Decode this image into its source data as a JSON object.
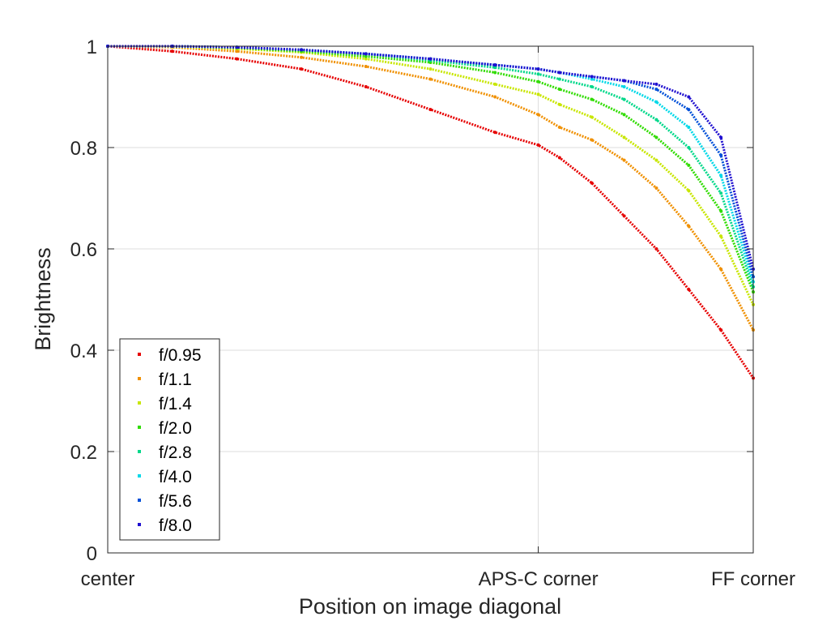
{
  "chart_data": {
    "type": "scatter",
    "title": "",
    "xlabel": "Position on image diagonal",
    "ylabel": "Brightness",
    "xlim": [
      0,
      1
    ],
    "ylim": [
      0,
      1
    ],
    "grid": true,
    "legend_position": "bottom-left",
    "x_ticks": [
      {
        "value": 0,
        "label": "center"
      },
      {
        "value": 0.667,
        "label": "APS-C corner"
      },
      {
        "value": 1,
        "label": "FF corner"
      }
    ],
    "y_ticks": [
      {
        "value": 0,
        "label": "0"
      },
      {
        "value": 0.2,
        "label": "0.2"
      },
      {
        "value": 0.4,
        "label": "0.4"
      },
      {
        "value": 0.6,
        "label": "0.6"
      },
      {
        "value": 0.8,
        "label": "0.8"
      },
      {
        "value": 1,
        "label": "1"
      }
    ],
    "x": [
      0,
      0.1,
      0.2,
      0.3,
      0.4,
      0.5,
      0.6,
      0.667,
      0.7,
      0.75,
      0.8,
      0.85,
      0.9,
      0.95,
      1.0
    ],
    "series": [
      {
        "name": "f/0.95",
        "color": "#e60000",
        "values": [
          1.0,
          0.99,
          0.975,
          0.955,
          0.92,
          0.875,
          0.83,
          0.805,
          0.78,
          0.73,
          0.665,
          0.6,
          0.52,
          0.44,
          0.345
        ]
      },
      {
        "name": "f/1.1",
        "color": "#f09000",
        "values": [
          1.0,
          0.998,
          0.99,
          0.978,
          0.96,
          0.935,
          0.9,
          0.865,
          0.84,
          0.815,
          0.775,
          0.72,
          0.645,
          0.56,
          0.44
        ]
      },
      {
        "name": "f/1.4",
        "color": "#c8e600",
        "values": [
          1.0,
          0.999,
          0.995,
          0.988,
          0.975,
          0.955,
          0.925,
          0.905,
          0.885,
          0.86,
          0.82,
          0.775,
          0.715,
          0.625,
          0.49
        ]
      },
      {
        "name": "f/2.0",
        "color": "#30dc00",
        "values": [
          1.0,
          1.0,
          0.997,
          0.99,
          0.98,
          0.968,
          0.948,
          0.93,
          0.915,
          0.895,
          0.865,
          0.82,
          0.765,
          0.675,
          0.515
        ]
      },
      {
        "name": "f/2.8",
        "color": "#00d88a",
        "values": [
          1.0,
          1.0,
          0.998,
          0.993,
          0.985,
          0.972,
          0.958,
          0.945,
          0.935,
          0.92,
          0.895,
          0.855,
          0.8,
          0.71,
          0.525
        ]
      },
      {
        "name": "f/4.0",
        "color": "#00d8e8",
        "values": [
          1.0,
          1.0,
          0.998,
          0.993,
          0.985,
          0.975,
          0.963,
          0.955,
          0.948,
          0.935,
          0.92,
          0.89,
          0.84,
          0.745,
          0.535
        ]
      },
      {
        "name": "f/5.6",
        "color": "#0050d8",
        "values": [
          1.0,
          1.0,
          0.998,
          0.993,
          0.985,
          0.975,
          0.963,
          0.955,
          0.948,
          0.94,
          0.932,
          0.915,
          0.875,
          0.785,
          0.545
        ]
      },
      {
        "name": "f/8.0",
        "color": "#2010d0",
        "values": [
          1.0,
          1.0,
          0.998,
          0.993,
          0.985,
          0.975,
          0.963,
          0.955,
          0.948,
          0.94,
          0.932,
          0.925,
          0.9,
          0.82,
          0.56
        ]
      }
    ]
  }
}
